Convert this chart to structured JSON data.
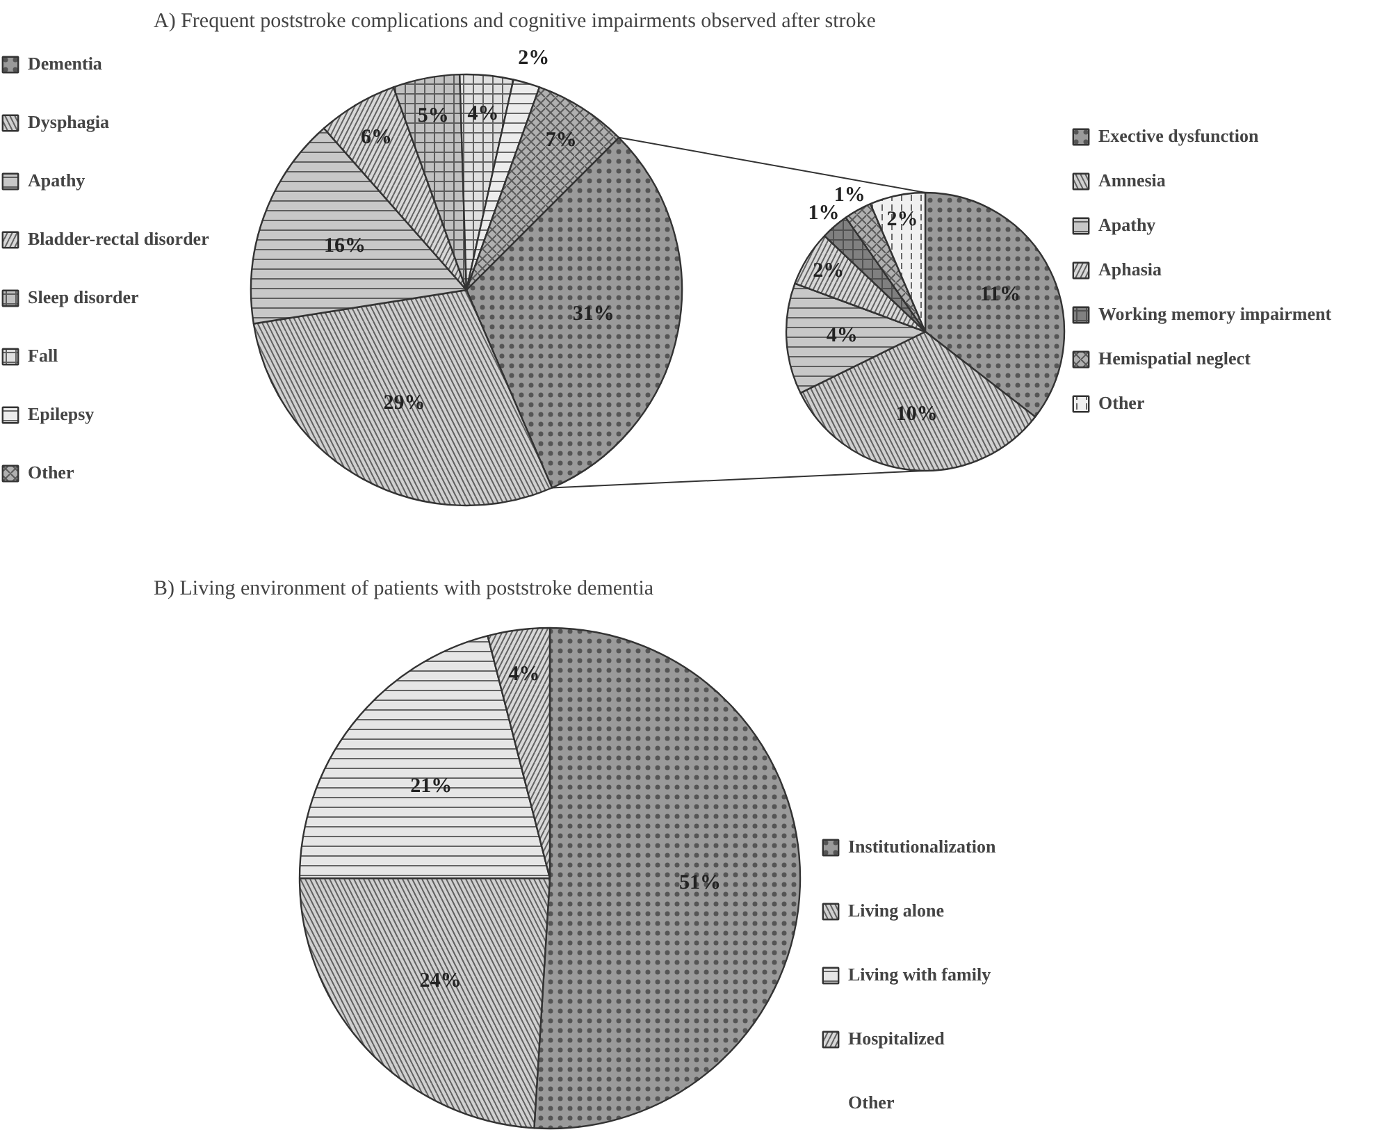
{
  "chart_data": [
    {
      "type": "pie",
      "title": "A) Frequent poststroke complications and cognitive impairments observed after stroke",
      "categories": [
        "Dementia",
        "Dysphagia",
        "Apathy",
        "Bladder-rectal disorder",
        "Sleep disorder",
        "Fall",
        "Epilepsy",
        "Other"
      ],
      "values": [
        31,
        29,
        16,
        6,
        5,
        4,
        2,
        7
      ],
      "colors": [
        "#9a9a9a",
        "#d0d0d0",
        "#c8c8c8",
        "#d8d8d8",
        "#c0c0c0",
        "#e0e0e0",
        "#ececec",
        "#b0b0b0"
      ],
      "value_labels": [
        "31%",
        "29%",
        "16%",
        "6%",
        "5%",
        "4%",
        "2%",
        "7%"
      ],
      "legend": "left"
    },
    {
      "type": "pie",
      "categories": [
        "Exective dysfunction",
        "Amnesia",
        "Apathy",
        "Aphasia",
        "Working memory impairment",
        "Hemispatial neglect",
        "Other"
      ],
      "values": [
        11,
        10,
        4,
        2,
        1,
        1,
        2
      ],
      "colors": [
        "#9a9a9a",
        "#d0d0d0",
        "#c8c8c8",
        "#d8d8d8",
        "#808080",
        "#b0b0b0",
        "#f0f0f0"
      ],
      "value_labels": [
        "11%",
        "10%",
        "4%",
        "2%",
        "1%",
        "1%",
        "2%"
      ],
      "legend": "right"
    },
    {
      "type": "pie",
      "title": "B) Living environment of patients with poststroke dementia",
      "categories": [
        "Institutionalization",
        "Living alone",
        "Living with family",
        "Hospitalized",
        "Other"
      ],
      "values": [
        51,
        24,
        21,
        4,
        0
      ],
      "colors": [
        "#9a9a9a",
        "#d0d0d0",
        "#e6e6e6",
        "#d8d8d8",
        "#c8c8c8"
      ],
      "value_labels": [
        "51%",
        "24%",
        "21%",
        "4%",
        null
      ],
      "legend": "right"
    }
  ]
}
